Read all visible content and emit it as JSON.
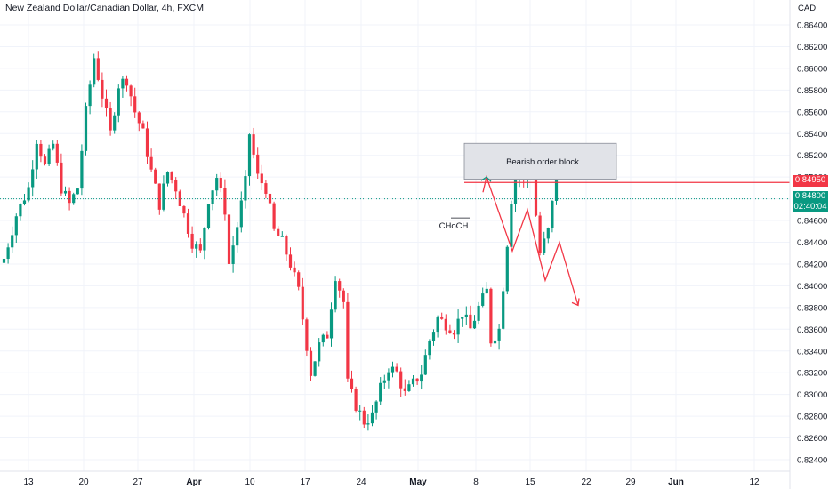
{
  "header": {
    "symbol_title": "New Zealand Dollar/Canadian Dollar, 4h, FXCM",
    "currency": "CAD"
  },
  "price_badges": {
    "level": {
      "value": "0.84950",
      "color": "#f23645"
    },
    "current": {
      "value": "0.84800",
      "countdown": "02:40:04",
      "color": "#089981"
    }
  },
  "colors": {
    "up": "#089981",
    "down": "#f23645",
    "grid": "#f0f3fa",
    "axis_text": "#131722"
  },
  "chart_data": {
    "type": "candlestick",
    "title": "New Zealand Dollar/Canadian Dollar, 4h, FXCM",
    "x_tick_labels": [
      "13",
      "20",
      "27",
      "Apr",
      "10",
      "17",
      "24",
      "May",
      "8",
      "15",
      "22",
      "29",
      "Jun",
      "12"
    ],
    "y_tick_labels": [
      "0.82400",
      "0.82600",
      "0.82800",
      "0.83000",
      "0.83200",
      "0.83400",
      "0.83600",
      "0.83800",
      "0.84000",
      "0.84200",
      "0.84400",
      "0.84600",
      "0.84800",
      "0.85000",
      "0.85200",
      "0.85400",
      "0.85600",
      "0.85800",
      "0.86000",
      "0.86200",
      "0.86400"
    ],
    "ylim": [
      0.8233,
      0.8658
    ],
    "grid": true,
    "path_points": [
      [
        0,
        0.8425
      ],
      [
        3,
        0.8465
      ],
      [
        6,
        0.849
      ],
      [
        8,
        0.8535
      ],
      [
        10,
        0.851
      ],
      [
        12,
        0.853
      ],
      [
        14,
        0.849
      ],
      [
        16,
        0.8475
      ],
      [
        18,
        0.849
      ],
      [
        20,
        0.856
      ],
      [
        22,
        0.861
      ],
      [
        24,
        0.8575
      ],
      [
        26,
        0.854
      ],
      [
        28,
        0.8585
      ],
      [
        30,
        0.859
      ],
      [
        32,
        0.856
      ],
      [
        34,
        0.854
      ],
      [
        36,
        0.8505
      ],
      [
        38,
        0.8475
      ],
      [
        40,
        0.8505
      ],
      [
        42,
        0.849
      ],
      [
        44,
        0.8465
      ],
      [
        46,
        0.844
      ],
      [
        48,
        0.843
      ],
      [
        50,
        0.848
      ],
      [
        52,
        0.85
      ],
      [
        54,
        0.847
      ],
      [
        55,
        0.842
      ],
      [
        57,
        0.8455
      ],
      [
        59,
        0.8495
      ],
      [
        60,
        0.854
      ],
      [
        62,
        0.85
      ],
      [
        64,
        0.849
      ],
      [
        66,
        0.845
      ],
      [
        68,
        0.844
      ],
      [
        70,
        0.842
      ],
      [
        72,
        0.8395
      ],
      [
        73,
        0.837
      ],
      [
        75,
        0.832
      ],
      [
        77,
        0.8345
      ],
      [
        79,
        0.8355
      ],
      [
        81,
        0.841
      ],
      [
        83,
        0.8385
      ],
      [
        84,
        0.831
      ],
      [
        86,
        0.829
      ],
      [
        88,
        0.8275
      ],
      [
        90,
        0.828
      ],
      [
        92,
        0.8305
      ],
      [
        94,
        0.8325
      ],
      [
        96,
        0.832
      ],
      [
        98,
        0.83
      ],
      [
        100,
        0.831
      ],
      [
        102,
        0.832
      ],
      [
        104,
        0.835
      ],
      [
        106,
        0.837
      ],
      [
        108,
        0.8365
      ],
      [
        110,
        0.836
      ],
      [
        112,
        0.8375
      ],
      [
        114,
        0.836
      ],
      [
        116,
        0.838
      ],
      [
        118,
        0.8395
      ],
      [
        119,
        0.835
      ],
      [
        121,
        0.836
      ],
      [
        123,
        0.844
      ],
      [
        124,
        0.848
      ],
      [
        126,
        0.852
      ],
      [
        127,
        0.8495
      ],
      [
        129,
        0.851
      ],
      [
        130,
        0.8465
      ],
      [
        131,
        0.843
      ],
      [
        133,
        0.845
      ],
      [
        135,
        0.85
      ],
      [
        136,
        0.85
      ]
    ],
    "annotations": {
      "order_block": {
        "label": "Bearish order block",
        "price_top": 0.8531,
        "price_bottom": 0.8498
      },
      "choch": {
        "label": "CHoCH",
        "price": 0.84575
      },
      "horizontal_level": 0.8495,
      "projection": [
        [
          0.85
        ],
        [
          0.8432
        ],
        [
          0.847
        ],
        [
          0.8405
        ],
        [
          0.844
        ],
        [
          0.8382
        ]
      ]
    }
  }
}
